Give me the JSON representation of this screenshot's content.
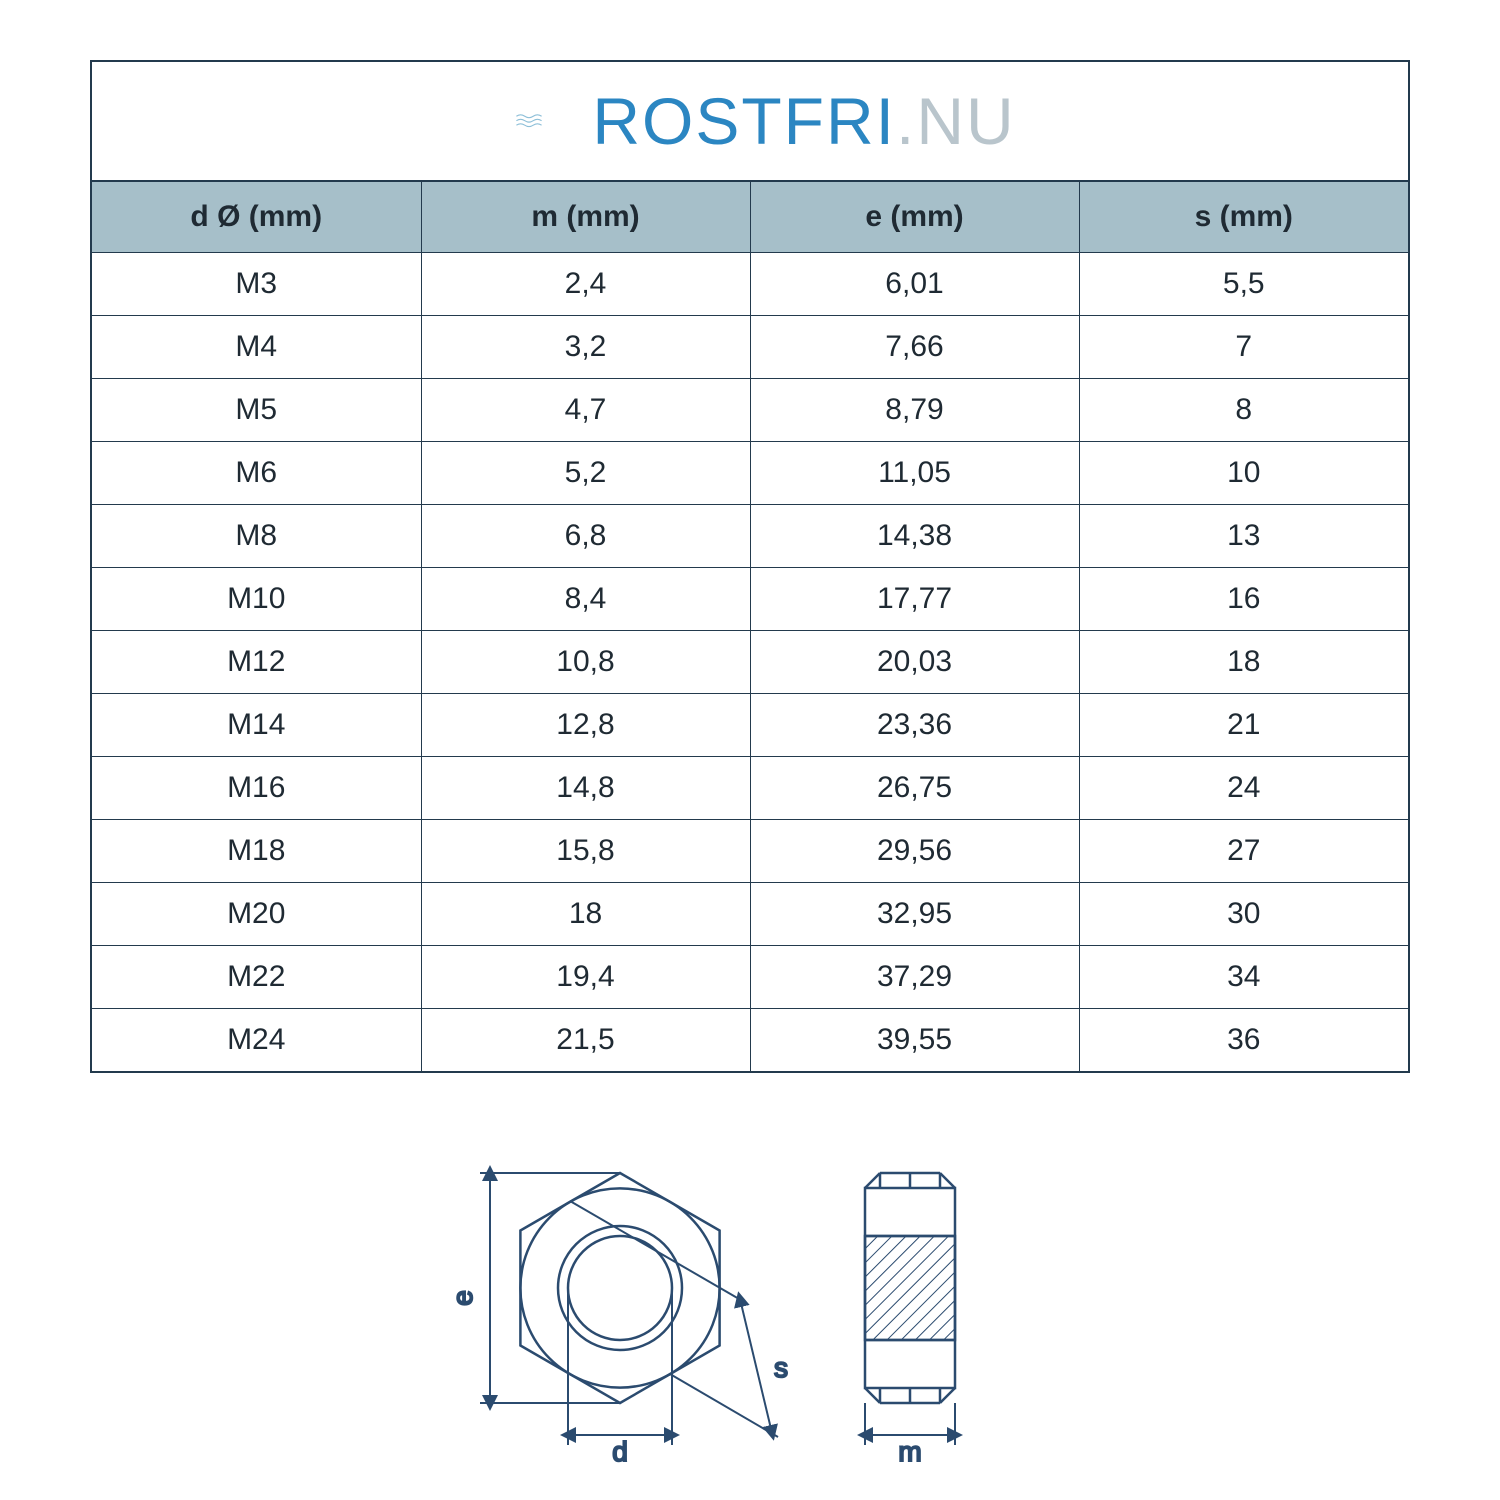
{
  "logo": {
    "part1": "ROSTFRI",
    "part2": ".NU",
    "wave_color": "#8dbfd8",
    "text_color_1": "#2b86c2",
    "text_color_2": "#b9c5cc"
  },
  "table": {
    "header_bg": "#a6bfc9",
    "border_color": "#233a4d",
    "columns": [
      "d Ø (mm)",
      "m (mm)",
      "e (mm)",
      "s (mm)"
    ],
    "rows": [
      [
        "M3",
        "2,4",
        "6,01",
        "5,5"
      ],
      [
        "M4",
        "3,2",
        "7,66",
        "7"
      ],
      [
        "M5",
        "4,7",
        "8,79",
        "8"
      ],
      [
        "M6",
        "5,2",
        "11,05",
        "10"
      ],
      [
        "M8",
        "6,8",
        "14,38",
        "13"
      ],
      [
        "M10",
        "8,4",
        "17,77",
        "16"
      ],
      [
        "M12",
        "10,8",
        "20,03",
        "18"
      ],
      [
        "M14",
        "12,8",
        "23,36",
        "21"
      ],
      [
        "M16",
        "14,8",
        "26,75",
        "24"
      ],
      [
        "M18",
        "15,8",
        "29,56",
        "27"
      ],
      [
        "M20",
        "18",
        "32,95",
        "30"
      ],
      [
        "M22",
        "19,4",
        "37,29",
        "34"
      ],
      [
        "M24",
        "21,5",
        "39,55",
        "36"
      ]
    ]
  },
  "diagram": {
    "stroke_color": "#2b4b6f",
    "hatch_color": "#2b4b6f",
    "label_e": "e",
    "label_d": "d",
    "label_s": "s",
    "label_m": "m",
    "label_fontsize": 28
  }
}
